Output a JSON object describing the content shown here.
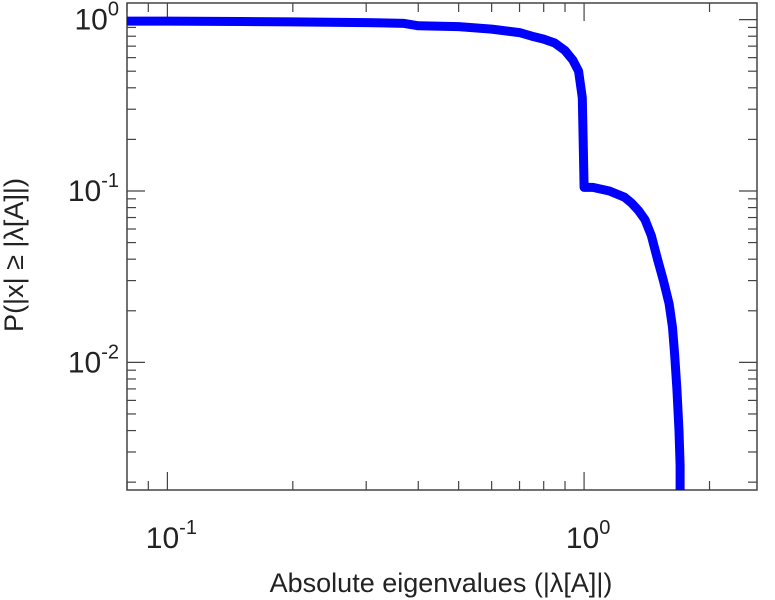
{
  "chart_data": {
    "type": "line",
    "title": "",
    "xlabel": "Absolute eigenvalues (|λ[A]|)",
    "ylabel": "P(|x| ≥ |λ[A]|)",
    "x_scale": "log",
    "y_scale": "log",
    "xlim": [
      0.08,
      2.6
    ],
    "ylim": [
      0.0018,
      1.25
    ],
    "x_ticks": [
      {
        "value": 0.1,
        "base": "10",
        "exp": "-1"
      },
      {
        "value": 1,
        "base": "10",
        "exp": "0"
      }
    ],
    "y_ticks": [
      {
        "value": 1,
        "base": "10",
        "exp": "0"
      },
      {
        "value": 0.1,
        "base": "10",
        "exp": "-1"
      },
      {
        "value": 0.01,
        "base": "10",
        "exp": "-2"
      }
    ],
    "grid": false,
    "line_color": "#0000ff",
    "series": [
      {
        "x": [
          0.08,
          0.1,
          0.15,
          0.2,
          0.3,
          0.37,
          0.4,
          0.5,
          0.6,
          0.7,
          0.75,
          0.8,
          0.85,
          0.9,
          0.94,
          0.97,
          0.99,
          1.0,
          1.0,
          1.05,
          1.15,
          1.25,
          1.3,
          1.35,
          1.4,
          1.45,
          1.5,
          1.55,
          1.6,
          1.63,
          1.65,
          1.67,
          1.69,
          1.7,
          1.7
        ],
        "y": [
          0.98,
          0.98,
          0.975,
          0.97,
          0.96,
          0.95,
          0.92,
          0.91,
          0.88,
          0.84,
          0.8,
          0.77,
          0.73,
          0.66,
          0.58,
          0.5,
          0.35,
          0.105,
          0.105,
          0.105,
          0.1,
          0.092,
          0.085,
          0.077,
          0.068,
          0.055,
          0.04,
          0.03,
          0.022,
          0.016,
          0.011,
          0.007,
          0.004,
          0.0025,
          0.0018
        ]
      }
    ]
  }
}
